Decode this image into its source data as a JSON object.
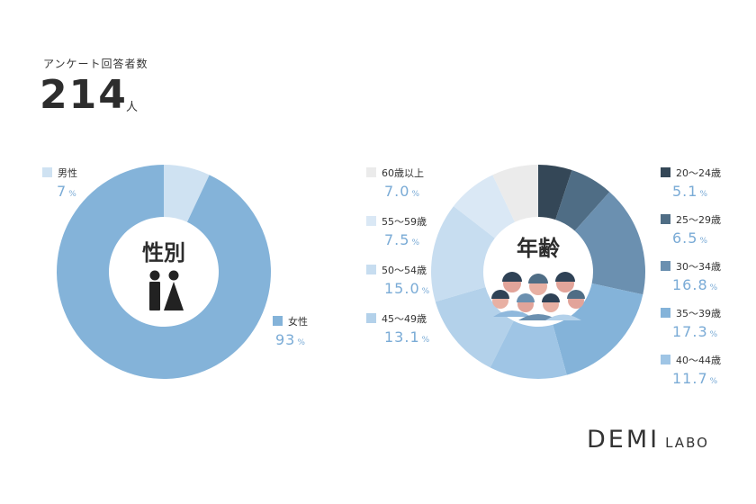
{
  "header": {
    "survey_label": "アンケート回答者数",
    "respondent_count": "214",
    "respondent_unit": "人"
  },
  "brand": {
    "main": "DEMI",
    "sub": "LABO"
  },
  "chart_data": [
    {
      "type": "pie",
      "title": "性別",
      "icon": "male-female-icon",
      "labels": [
        "女性",
        "男性"
      ],
      "values": [
        93,
        7
      ],
      "unit": "%",
      "colors": [
        "#84b3d9",
        "#cfe2f2"
      ]
    },
    {
      "type": "pie",
      "title": "年齢",
      "icon": "group-of-people-icon",
      "labels": [
        "20〜24歳",
        "25〜29歳",
        "30〜34歳",
        "35〜39歳",
        "40〜44歳",
        "45〜49歳",
        "50〜54歳",
        "55〜59歳",
        "60歳以上"
      ],
      "values": [
        5.1,
        6.5,
        16.8,
        17.3,
        11.7,
        13.1,
        15.0,
        7.5,
        7.0
      ],
      "display_values": [
        "5.1",
        "6.5",
        "16.8",
        "17.3",
        "11.7",
        "13.1",
        "15.0",
        "7.5",
        "7.0"
      ],
      "unit": "%",
      "colors": [
        "#344757",
        "#4f6d85",
        "#6b90b0",
        "#84b3d9",
        "#9fc5e5",
        "#b3d1ea",
        "#c7ddf0",
        "#dae8f5",
        "#ebebeb"
      ]
    }
  ]
}
